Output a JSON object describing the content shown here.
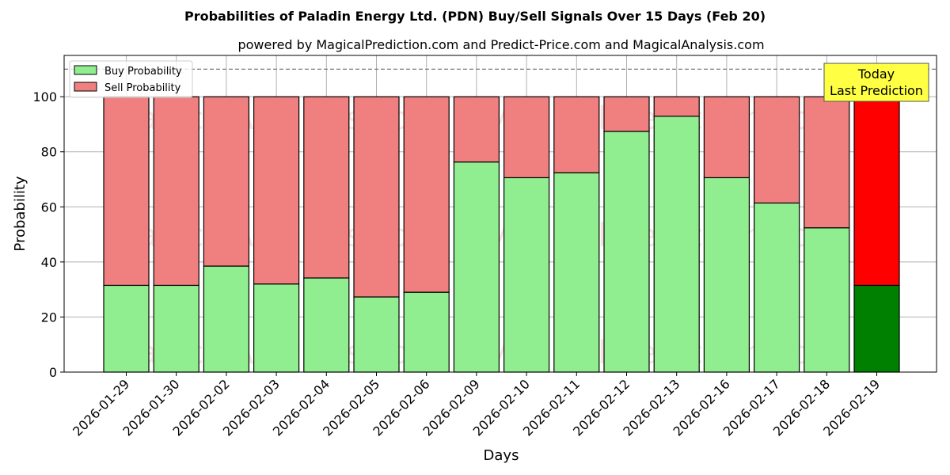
{
  "chart_data": {
    "type": "bar",
    "stacked": true,
    "title": "Probabilities of Paladin Energy Ltd. (PDN) Buy/Sell Signals Over 15 Days (Feb 20)",
    "subtitle": "powered by MagicalPrediction.com and Predict-Price.com and MagicalAnalysis.com",
    "xlabel": "Days",
    "ylabel": "Probability",
    "ylim": [
      0,
      115
    ],
    "yticks": [
      0,
      20,
      40,
      60,
      80,
      100
    ],
    "reference_line": 110,
    "grid": true,
    "legend_position": "top-left",
    "categories": [
      "2026-01-29",
      "2026-01-30",
      "2026-02-02",
      "2026-02-03",
      "2026-02-04",
      "2026-02-05",
      "2026-02-06",
      "2026-02-09",
      "2026-02-10",
      "2026-02-11",
      "2026-02-12",
      "2026-02-13",
      "2026-02-16",
      "2026-02-17",
      "2026-02-18",
      "2026-02-19"
    ],
    "series": [
      {
        "name": "Buy Probability",
        "color": "#90ee90",
        "values": [
          31.5,
          31.5,
          38.5,
          32,
          34.2,
          27.3,
          29,
          76.3,
          70.6,
          72.4,
          87.4,
          92.9,
          70.6,
          61.4,
          52.4,
          31.5
        ]
      },
      {
        "name": "Sell Probability",
        "color": "#f08080",
        "values": [
          68.5,
          68.5,
          61.5,
          68,
          65.8,
          72.7,
          71,
          23.7,
          29.4,
          27.6,
          12.6,
          7.1,
          29.4,
          38.6,
          47.6,
          68.5
        ]
      }
    ],
    "highlight": {
      "index": 15,
      "buy_color": "#008000",
      "sell_color": "#ff0000"
    },
    "annotation": {
      "line1": "Today",
      "line2": "Last Prediction",
      "color": "#ffff44"
    },
    "watermarks": [
      "MagicalAnalysis.com",
      "MagicalPrediction.com"
    ]
  }
}
